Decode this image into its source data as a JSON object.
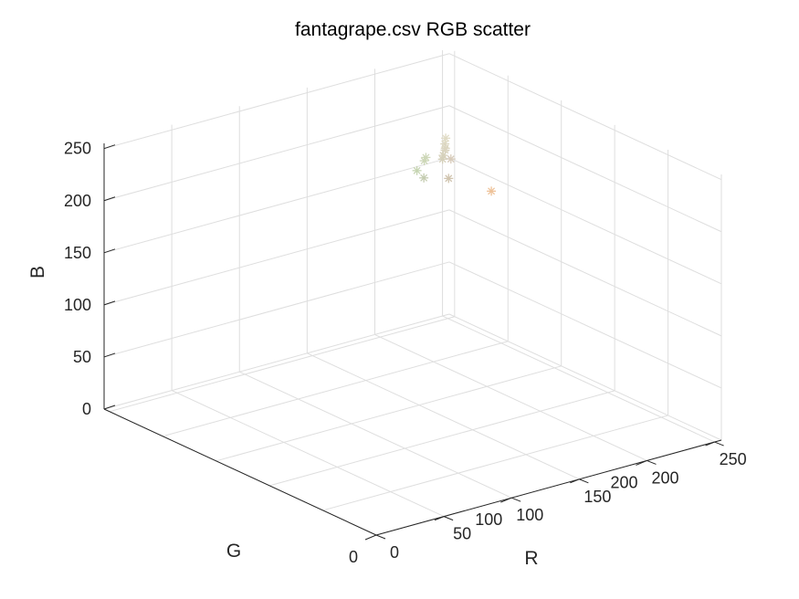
{
  "chart_data": {
    "type": "scatter",
    "title": "fantagrape.csv RGB scatter",
    "xlabel": "R",
    "ylabel": "G",
    "zlabel": "B",
    "xlim": [
      0,
      255
    ],
    "ylim": [
      0,
      255
    ],
    "zlim": [
      0,
      255
    ],
    "x_ticks": [
      0,
      50,
      100,
      150,
      200,
      250
    ],
    "y_ticks": [
      0,
      100,
      200
    ],
    "y_minor_ticks": [
      50,
      150,
      250
    ],
    "z_ticks": [
      0,
      50,
      100,
      150,
      200,
      250
    ],
    "grid": true,
    "marker": "asterisk",
    "points": [
      {
        "r": 218,
        "g": 212,
        "b": 191
      },
      {
        "r": 221,
        "g": 216,
        "b": 194
      },
      {
        "r": 215,
        "g": 210,
        "b": 188
      },
      {
        "r": 224,
        "g": 219,
        "b": 197
      },
      {
        "r": 219,
        "g": 213,
        "b": 192
      },
      {
        "r": 207,
        "g": 216,
        "b": 186
      },
      {
        "r": 205,
        "g": 215,
        "b": 184
      },
      {
        "r": 196,
        "g": 204,
        "b": 176
      },
      {
        "r": 198,
        "g": 213,
        "b": 178
      },
      {
        "r": 213,
        "g": 208,
        "b": 186
      },
      {
        "r": 216,
        "g": 204,
        "b": 187
      },
      {
        "r": 208,
        "g": 196,
        "b": 175
      },
      {
        "r": 238,
        "g": 194,
        "b": 153
      }
    ]
  }
}
